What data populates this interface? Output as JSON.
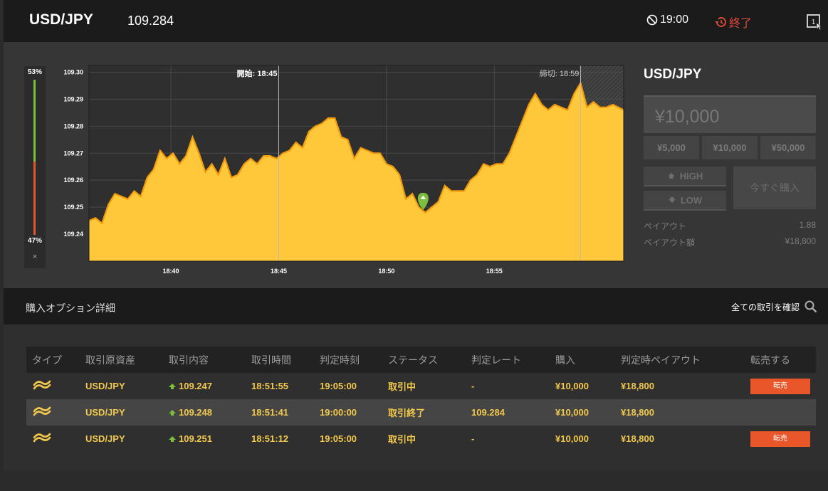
{
  "header": {
    "pair": "USD/JPY",
    "rate": "109.284",
    "expiry_time": "19:00",
    "end_label": "終了"
  },
  "gauge": {
    "high_pct": "53%",
    "low_pct": "47%",
    "close": "×"
  },
  "chart_data": {
    "type": "area",
    "y_ticks": [
      "109.30",
      "109.29",
      "109.28",
      "109.27",
      "109.26",
      "109.25",
      "109.24"
    ],
    "x_ticks": [
      "18:40",
      "18:45",
      "18:50",
      "18:55"
    ],
    "ylim": [
      109.23,
      109.3025
    ],
    "start_label": "開始: 18:45",
    "close_label": "締切: 18:59",
    "x_start_min": 36.2,
    "x_end_min": 61.0,
    "start_min": 45.0,
    "close_min": 59.0,
    "entry": {
      "x": 51.7,
      "y": 109.249
    },
    "series": [
      {
        "values": [
          [
            36.2,
            109.245
          ],
          [
            36.5,
            109.246
          ],
          [
            36.8,
            109.244
          ],
          [
            37.1,
            109.251
          ],
          [
            37.4,
            109.255
          ],
          [
            37.7,
            109.254
          ],
          [
            38.0,
            109.253
          ],
          [
            38.3,
            109.256
          ],
          [
            38.6,
            109.254
          ],
          [
            38.9,
            109.261
          ],
          [
            39.2,
            109.264
          ],
          [
            39.5,
            109.271
          ],
          [
            39.8,
            109.268
          ],
          [
            40.1,
            109.27
          ],
          [
            40.4,
            109.266
          ],
          [
            40.7,
            109.269
          ],
          [
            41.0,
            109.276
          ],
          [
            41.3,
            109.27
          ],
          [
            41.6,
            109.263
          ],
          [
            41.9,
            109.266
          ],
          [
            42.2,
            109.262
          ],
          [
            42.5,
            109.268
          ],
          [
            42.8,
            109.261
          ],
          [
            43.1,
            109.262
          ],
          [
            43.4,
            109.266
          ],
          [
            43.7,
            109.268
          ],
          [
            44.0,
            109.266
          ],
          [
            44.3,
            109.269
          ],
          [
            44.6,
            109.269
          ],
          [
            44.9,
            109.268
          ],
          [
            45.2,
            109.27
          ],
          [
            45.5,
            109.271
          ],
          [
            45.8,
            109.274
          ],
          [
            46.1,
            109.272
          ],
          [
            46.4,
            109.278
          ],
          [
            46.7,
            109.28
          ],
          [
            47.0,
            109.281
          ],
          [
            47.3,
            109.283
          ],
          [
            47.6,
            109.283
          ],
          [
            47.9,
            109.276
          ],
          [
            48.2,
            109.275
          ],
          [
            48.5,
            109.268
          ],
          [
            48.8,
            109.272
          ],
          [
            49.1,
            109.271
          ],
          [
            49.4,
            109.27
          ],
          [
            49.7,
            109.27
          ],
          [
            50.0,
            109.266
          ],
          [
            50.3,
            109.265
          ],
          [
            50.6,
            109.262
          ],
          [
            50.9,
            109.253
          ],
          [
            51.2,
            109.255
          ],
          [
            51.5,
            109.25
          ],
          [
            51.8,
            109.248
          ],
          [
            52.1,
            109.25
          ],
          [
            52.4,
            109.252
          ],
          [
            52.7,
            109.258
          ],
          [
            53.0,
            109.256
          ],
          [
            53.3,
            109.256
          ],
          [
            53.6,
            109.256
          ],
          [
            53.9,
            109.26
          ],
          [
            54.2,
            109.262
          ],
          [
            54.5,
            109.266
          ],
          [
            54.8,
            109.265
          ],
          [
            55.1,
            109.266
          ],
          [
            55.4,
            109.266
          ],
          [
            55.7,
            109.27
          ],
          [
            56.0,
            109.276
          ],
          [
            56.3,
            109.282
          ],
          [
            56.6,
            109.288
          ],
          [
            56.9,
            109.292
          ],
          [
            57.2,
            109.288
          ],
          [
            57.5,
            109.286
          ],
          [
            57.8,
            109.288
          ],
          [
            58.1,
            109.287
          ],
          [
            58.4,
            109.286
          ],
          [
            58.7,
            109.292
          ],
          [
            59.0,
            109.296
          ],
          [
            59.3,
            109.287
          ],
          [
            59.6,
            109.289
          ],
          [
            59.9,
            109.287
          ],
          [
            60.2,
            109.287
          ],
          [
            60.5,
            109.288
          ],
          [
            61.0,
            109.286
          ]
        ]
      }
    ],
    "colors": {
      "fill": "#ffc83a",
      "line": "#f09a0c",
      "grid": "#4a4a4a",
      "bg": "#2f2f2f"
    }
  },
  "order_panel": {
    "title": "USD/JPY",
    "amount_placeholder": "¥10,000",
    "quick_amounts": [
      "¥5,000",
      "¥10,000",
      "¥50,000"
    ],
    "high_label": "HIGH",
    "low_label": "LOW",
    "buy_now_label": "今すぐ購入",
    "payout_label": "ペイアウト",
    "payout_value": "1.88",
    "payout_amount_label": "ペイアウト額",
    "payout_amount_value": "¥18,800"
  },
  "details": {
    "title": "購入オプション詳細",
    "all_trades_label": "全ての取引を確認"
  },
  "table": {
    "headers": [
      "タイプ",
      "取引原資産",
      "取引内容",
      "取引時間",
      "判定時刻",
      "ステータス",
      "判定レート",
      "購入",
      "判定時ペイアウト",
      "転売する"
    ],
    "rows": [
      {
        "asset": "USD/JPY",
        "content": "109.247",
        "time": "18:51:55",
        "judge_time": "19:05:00",
        "status": "取引中",
        "judge_rate": "-",
        "purchase": "¥10,000",
        "payout": "¥18,800",
        "sell": "転売"
      },
      {
        "asset": "USD/JPY",
        "content": "109.248",
        "time": "18:51:41",
        "judge_time": "19:00:00",
        "status": "取引終了",
        "judge_rate": "109.284",
        "purchase": "¥10,000",
        "payout": "¥18,800",
        "sell": ""
      },
      {
        "asset": "USD/JPY",
        "content": "109.251",
        "time": "18:51:12",
        "judge_time": "19:05:00",
        "status": "取引中",
        "judge_rate": "-",
        "purchase": "¥10,000",
        "payout": "¥18,800",
        "sell": "転売"
      }
    ]
  },
  "icons": {
    "clock": "clock-off-icon",
    "history": "history-icon",
    "window": "new-window-icon",
    "search": "search-icon",
    "type": "trade-type-icon"
  }
}
